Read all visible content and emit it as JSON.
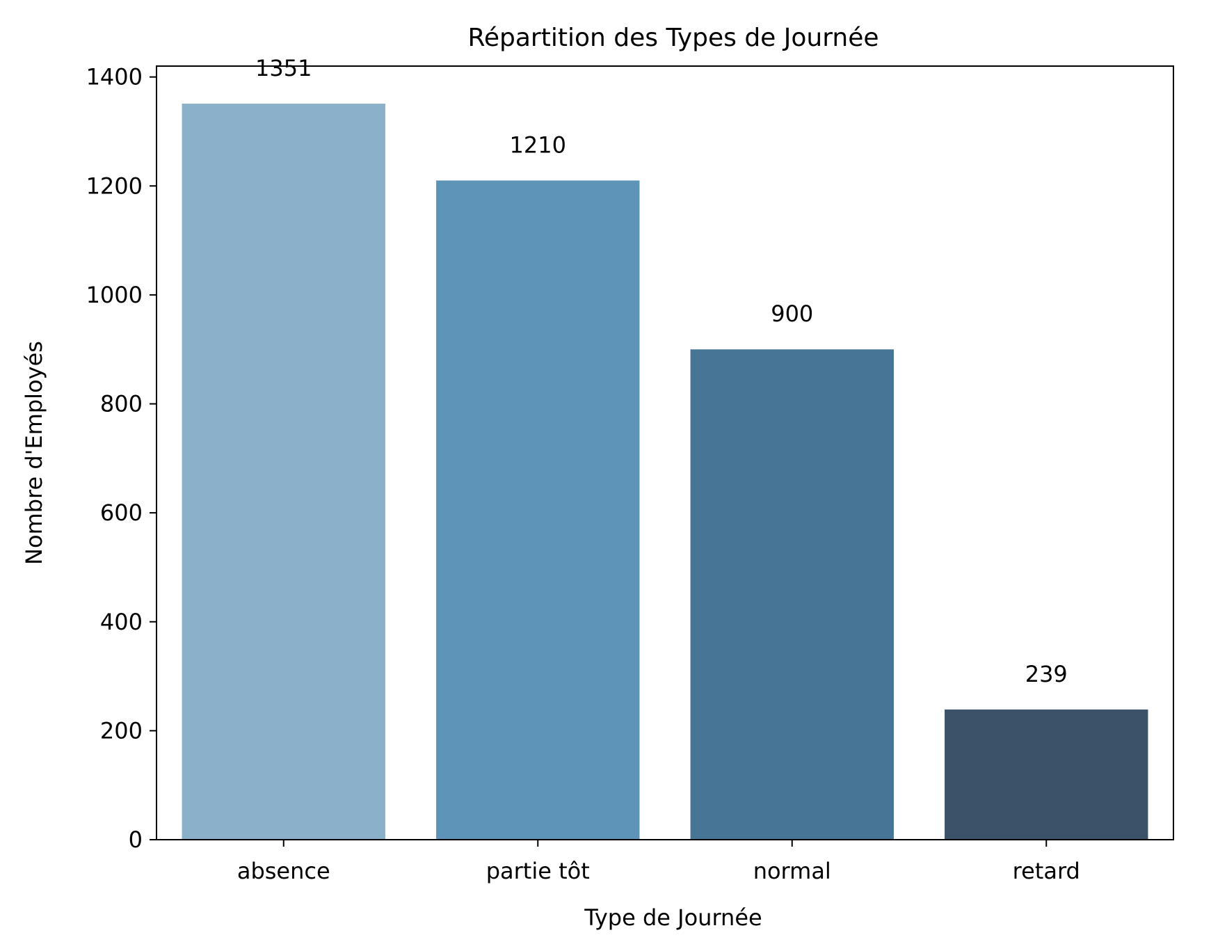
{
  "chart_data": {
    "type": "bar",
    "title": "Répartition des Types de Journée",
    "xlabel": "Type de Journée",
    "ylabel": "Nombre d'Employés",
    "categories": [
      "absence",
      "partie tôt",
      "normal",
      "retard"
    ],
    "values": [
      1351,
      1210,
      900,
      239
    ],
    "value_labels": [
      "1351",
      "1210",
      "900",
      "239"
    ],
    "bar_colors": [
      "#8AB0CA",
      "#5E94B8",
      "#467595",
      "#3B5268"
    ],
    "ylim": [
      0,
      1420
    ],
    "yticks": [
      0,
      200,
      400,
      600,
      800,
      1000,
      1200,
      1400
    ],
    "grid": false,
    "legend": "none"
  }
}
